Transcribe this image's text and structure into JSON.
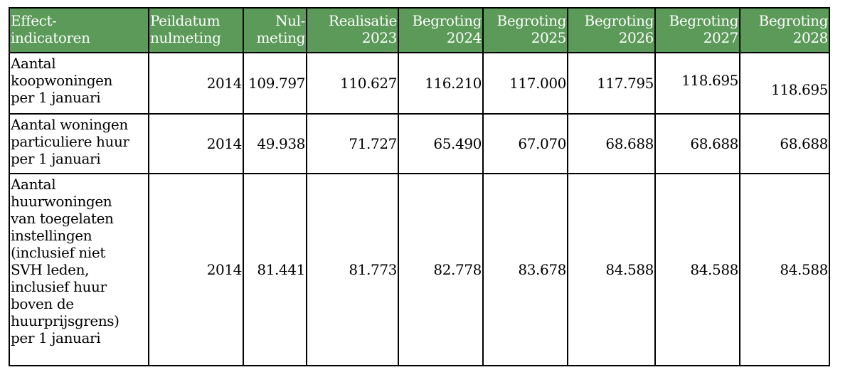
{
  "table": {
    "headers": {
      "indicator": [
        "Effect-",
        "indicatoren"
      ],
      "peildatum": [
        "Peildatum",
        "nulmeting"
      ],
      "nulmeting": [
        "Nul-",
        "meting"
      ],
      "realisatie_2023": [
        "Realisatie",
        "2023"
      ],
      "begroting_2024": [
        "Begroting",
        "2024"
      ],
      "begroting_2025": [
        "Begroting",
        "2025"
      ],
      "begroting_2026": [
        "Begroting",
        "2026"
      ],
      "begroting_2027": [
        "Begroting",
        "2027"
      ],
      "begroting_2028": [
        "Begroting",
        "2028"
      ]
    },
    "rows": [
      {
        "label": [
          "Aantal",
          "koopwoningen",
          "per 1 januari"
        ],
        "peildatum": "2014",
        "nulmeting": "109.797",
        "realisatie_2023": "110.627",
        "begroting_2024": "116.210",
        "begroting_2025": "117.000",
        "begroting_2026": "117.795",
        "begroting_2027": "118.695",
        "begroting_2028": "118.695"
      },
      {
        "label": [
          "Aantal woningen",
          "particuliere huur",
          "per 1 januari"
        ],
        "peildatum": "2014",
        "nulmeting": "49.938",
        "realisatie_2023": "71.727",
        "begroting_2024": "65.490",
        "begroting_2025": "67.070",
        "begroting_2026": "68.688",
        "begroting_2027": "68.688",
        "begroting_2028": "68.688"
      },
      {
        "label": [
          "Aantal",
          "huurwoningen",
          "van toegelaten",
          "instellingen",
          "(inclusief niet",
          "SVH leden,",
          "inclusief huur",
          "boven de",
          "huurprijsgrens)",
          "per 1 januari"
        ],
        "peildatum": "2014",
        "nulmeting": "81.441",
        "realisatie_2023": "81.773",
        "begroting_2024": "82.778",
        "begroting_2025": "83.678",
        "begroting_2026": "84.588",
        "begroting_2027": "84.588",
        "begroting_2028": "84.588"
      }
    ]
  },
  "colors": {
    "header_background": "#5b9a59",
    "header_text": "#ffffff",
    "border": "#000000"
  }
}
